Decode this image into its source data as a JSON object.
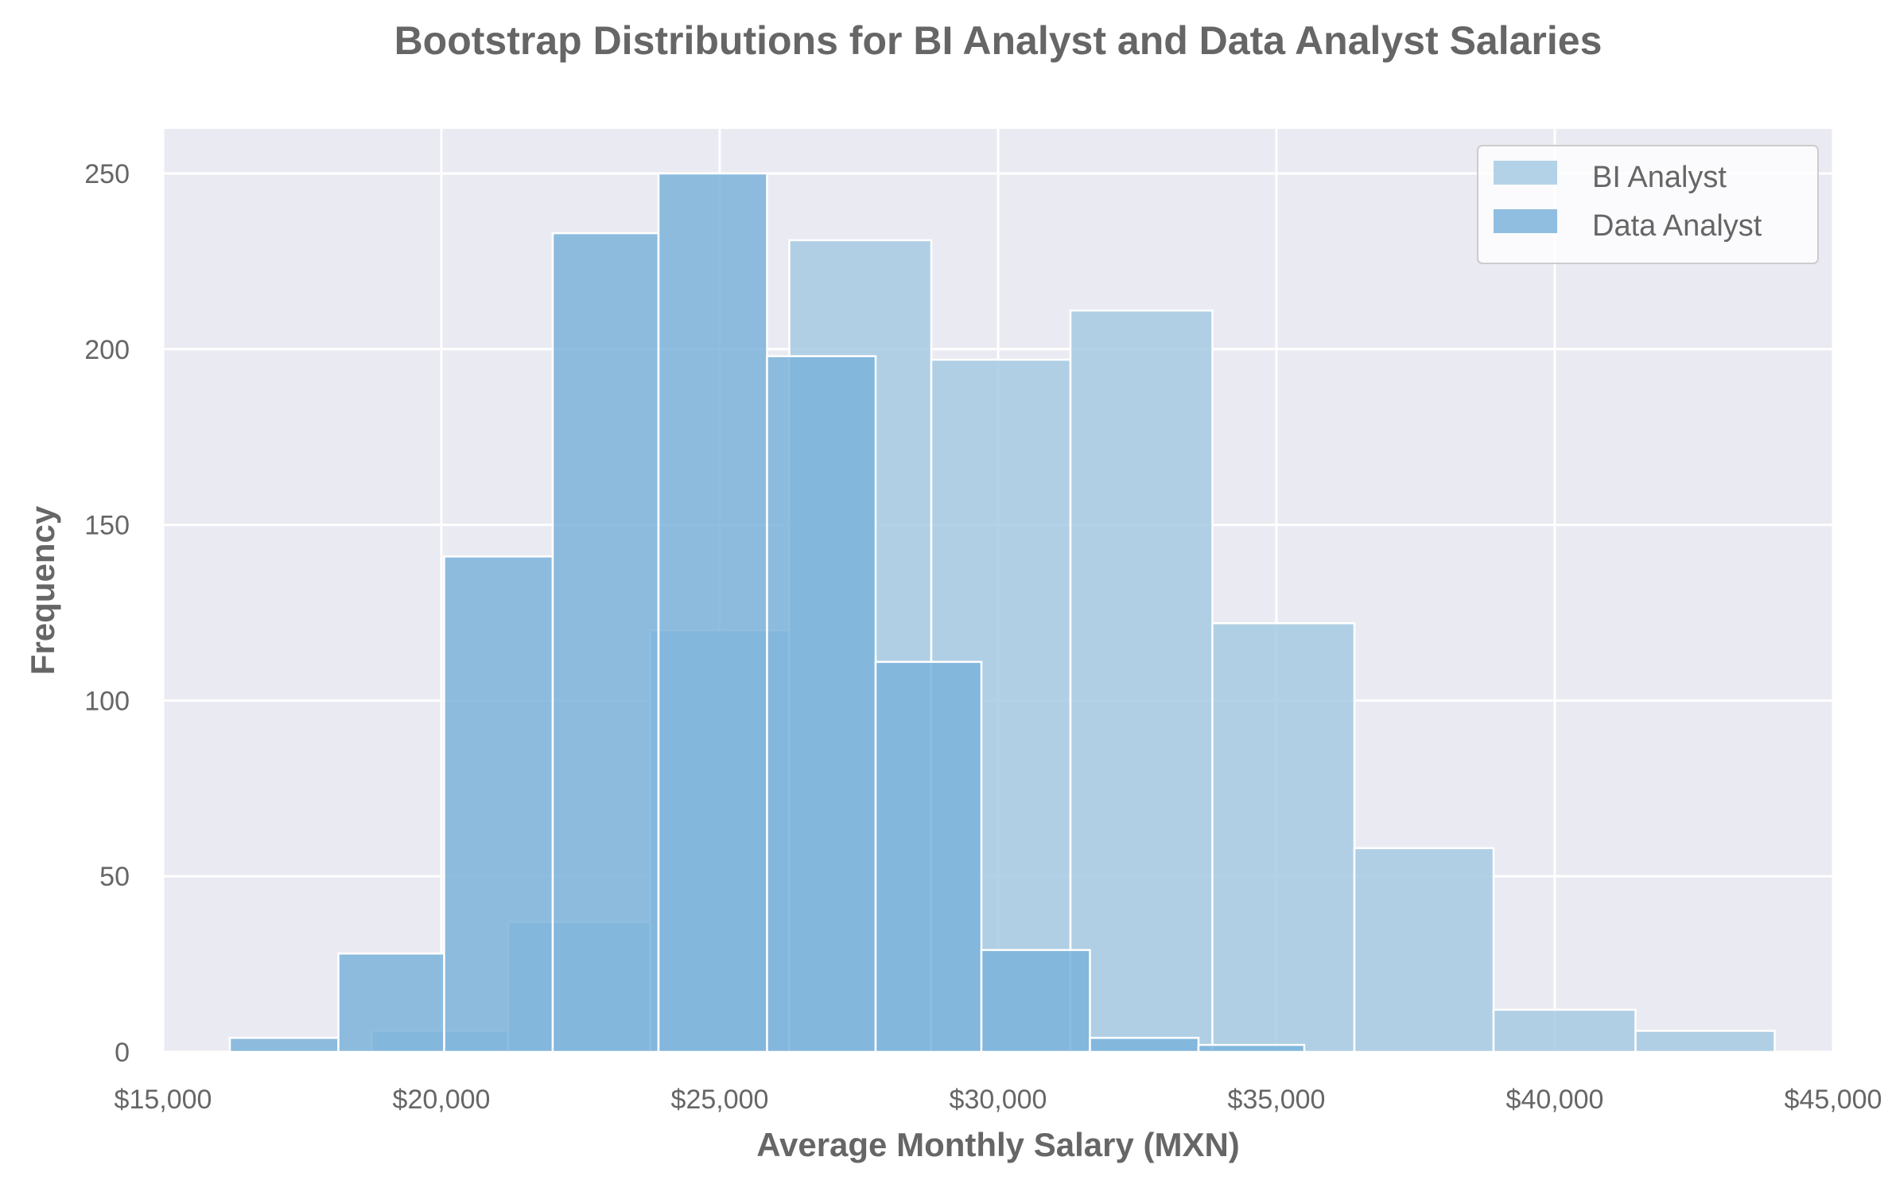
{
  "chart_data": {
    "type": "histogram",
    "title": "Bootstrap Distributions for BI Analyst and Data Analyst Salaries",
    "xlabel": "Average Monthly Salary (MXN)",
    "ylabel": "Frequency",
    "xlim": [
      15000,
      45000
    ],
    "ylim": [
      0,
      262
    ],
    "x_ticks": [
      15000,
      20000,
      25000,
      30000,
      35000,
      40000,
      45000
    ],
    "x_tick_labels": [
      "$15,000",
      "$20,000",
      "$25,000",
      "$30,000",
      "$35,000",
      "$40,000",
      "$45,000"
    ],
    "y_ticks": [
      0,
      50,
      100,
      150,
      200,
      250
    ],
    "y_tick_labels": [
      "0",
      "50",
      "100",
      "150",
      "200",
      "250"
    ],
    "grid": true,
    "legend_position": "top-right",
    "series": [
      {
        "name": "BI Analyst",
        "color": "#a6cae3",
        "bins": [
          {
            "x0": 18750,
            "x1": 21200,
            "count": 6
          },
          {
            "x0": 21200,
            "x1": 23750,
            "count": 37
          },
          {
            "x0": 23750,
            "x1": 26250,
            "count": 120
          },
          {
            "x0": 26250,
            "x1": 28800,
            "count": 231
          },
          {
            "x0": 28800,
            "x1": 31300,
            "count": 197
          },
          {
            "x0": 31300,
            "x1": 33850,
            "count": 211
          },
          {
            "x0": 33850,
            "x1": 36400,
            "count": 122
          },
          {
            "x0": 36400,
            "x1": 38900,
            "count": 58
          },
          {
            "x0": 38900,
            "x1": 41450,
            "count": 12
          },
          {
            "x0": 41450,
            "x1": 43950,
            "count": 6
          }
        ]
      },
      {
        "name": "Data Analyst",
        "color": "#7bb3db",
        "bins": [
          {
            "x0": 16200,
            "x1": 18150,
            "count": 4
          },
          {
            "x0": 18150,
            "x1": 20050,
            "count": 28
          },
          {
            "x0": 20050,
            "x1": 22000,
            "count": 141
          },
          {
            "x0": 22000,
            "x1": 23900,
            "count": 233
          },
          {
            "x0": 23900,
            "x1": 25850,
            "count": 250
          },
          {
            "x0": 25850,
            "x1": 27800,
            "count": 198
          },
          {
            "x0": 27800,
            "x1": 29700,
            "count": 111
          },
          {
            "x0": 29700,
            "x1": 31650,
            "count": 29
          },
          {
            "x0": 31650,
            "x1": 33600,
            "count": 4
          },
          {
            "x0": 33600,
            "x1": 35500,
            "count": 2
          }
        ]
      }
    ]
  }
}
